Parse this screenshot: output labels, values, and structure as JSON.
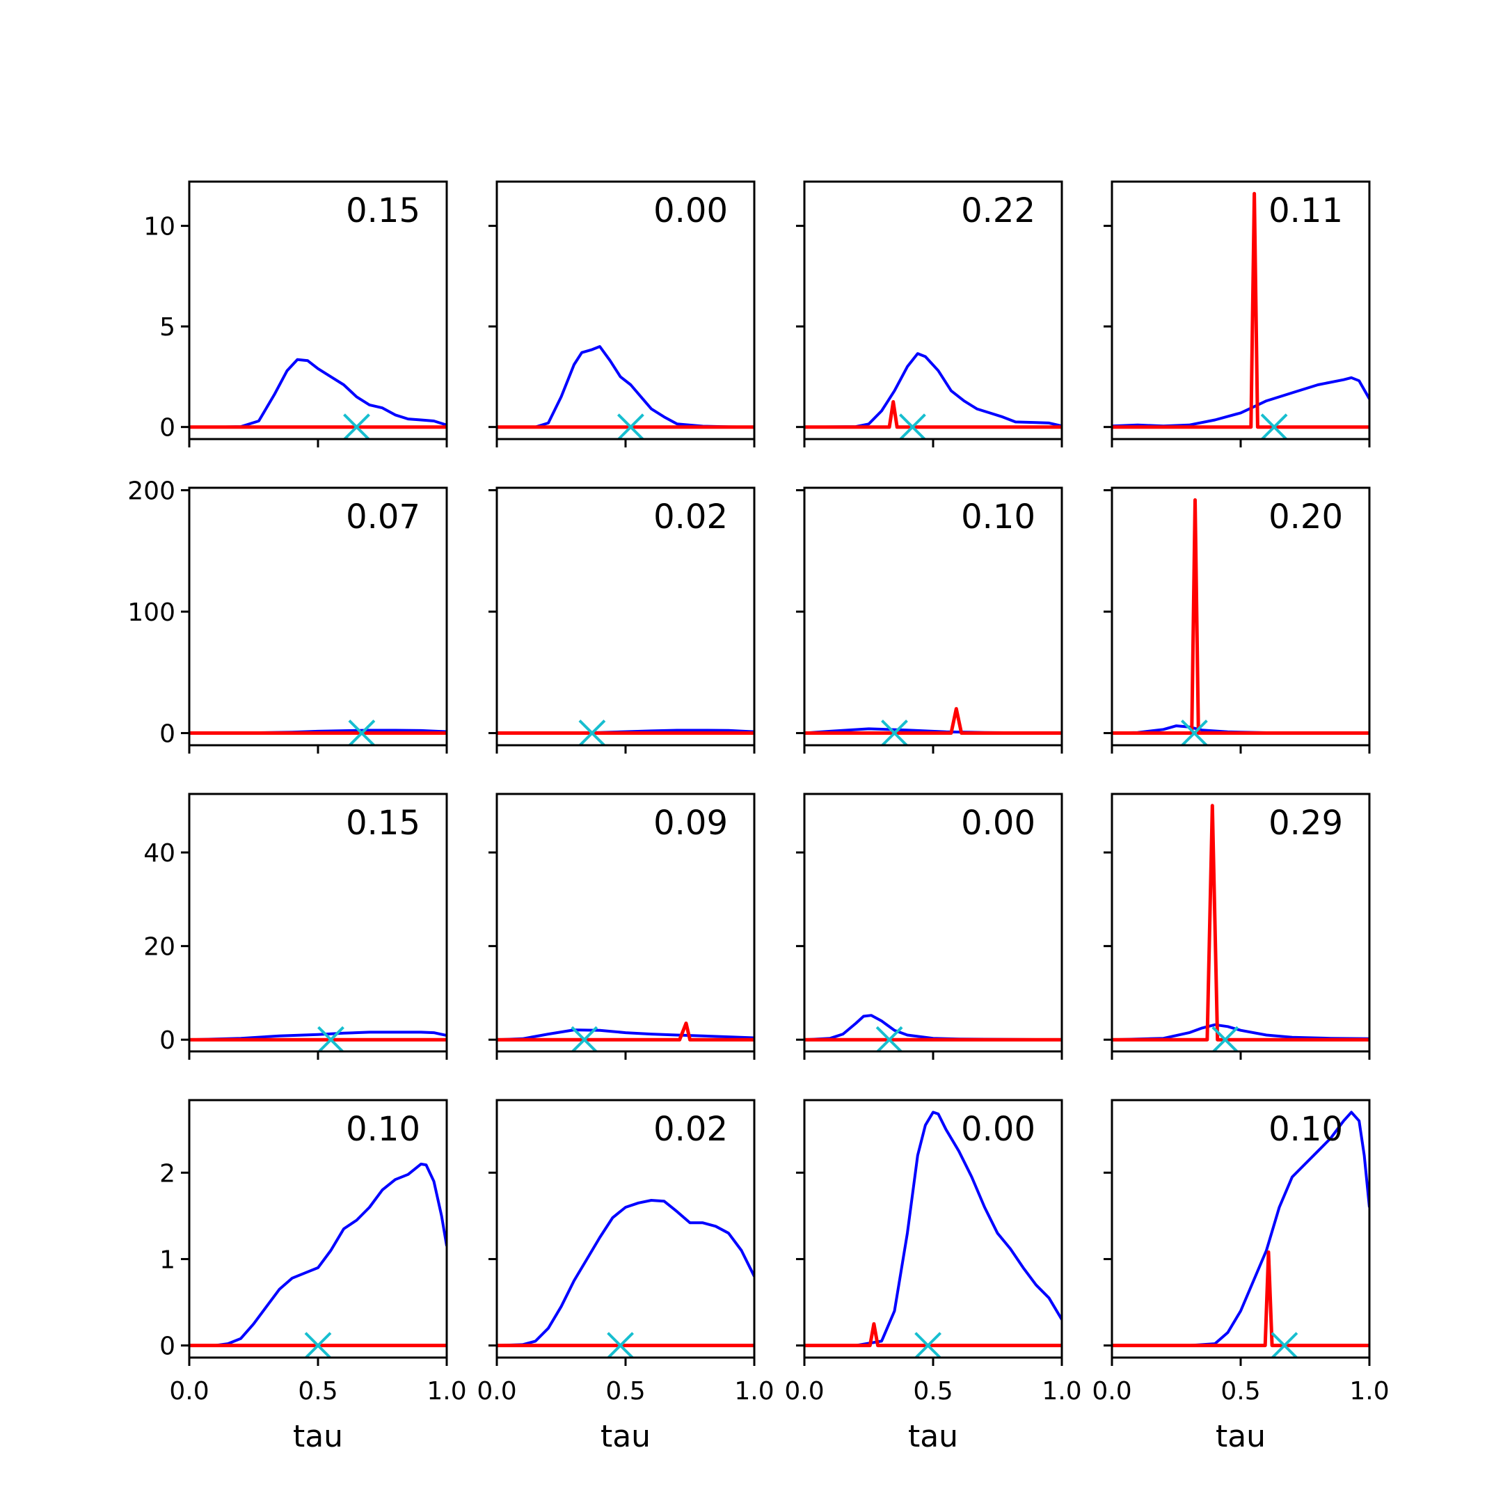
{
  "colors": {
    "posterior": "#0000ff",
    "point_mass": "#ff0000",
    "marker": "#17becf",
    "frame": "#000000",
    "background": "#ffffff"
  },
  "chart_data": {
    "type": "line",
    "layout": "4x4 small multiples",
    "x_range": [
      0,
      1
    ],
    "x_ticks": [
      0.0,
      0.5,
      1.0
    ],
    "x_tick_labels": [
      "0.0",
      "0.5",
      "1.0"
    ],
    "xlabel": "tau",
    "rows": [
      {
        "ylim": [
          -0.6,
          12.2
        ],
        "y_ticks": [
          0,
          5,
          10
        ],
        "y_tick_labels": [
          "0",
          "5",
          "10"
        ]
      },
      {
        "ylim": [
          -10,
          202
        ],
        "y_ticks": [
          0,
          100,
          200
        ],
        "y_tick_labels": [
          "0",
          "100",
          "200"
        ]
      },
      {
        "ylim": [
          -2.5,
          52.5
        ],
        "y_ticks": [
          0,
          20,
          40
        ],
        "y_tick_labels": [
          "0",
          "20",
          "40"
        ]
      },
      {
        "ylim": [
          -0.14,
          2.84
        ],
        "y_ticks": [
          0,
          1,
          2
        ],
        "y_tick_labels": [
          "0",
          "1",
          "2"
        ]
      }
    ],
    "panels": [
      {
        "annotation": "0.15",
        "marker_x": 0.65,
        "posterior": [
          [
            0,
            0
          ],
          [
            0.1,
            0
          ],
          [
            0.2,
            0.02
          ],
          [
            0.27,
            0.3
          ],
          [
            0.33,
            1.6
          ],
          [
            0.38,
            2.8
          ],
          [
            0.42,
            3.35
          ],
          [
            0.46,
            3.3
          ],
          [
            0.5,
            2.9
          ],
          [
            0.55,
            2.5
          ],
          [
            0.6,
            2.1
          ],
          [
            0.65,
            1.5
          ],
          [
            0.7,
            1.1
          ],
          [
            0.75,
            0.95
          ],
          [
            0.8,
            0.6
          ],
          [
            0.85,
            0.4
          ],
          [
            0.9,
            0.35
          ],
          [
            0.95,
            0.3
          ],
          [
            1.0,
            0.1
          ]
        ],
        "point_mass": [
          [
            0,
            0
          ],
          [
            1,
            0
          ]
        ]
      },
      {
        "annotation": "0.00",
        "marker_x": 0.52,
        "posterior": [
          [
            0,
            0
          ],
          [
            0.15,
            0
          ],
          [
            0.2,
            0.2
          ],
          [
            0.25,
            1.5
          ],
          [
            0.3,
            3.1
          ],
          [
            0.33,
            3.7
          ],
          [
            0.37,
            3.85
          ],
          [
            0.4,
            4.0
          ],
          [
            0.44,
            3.3
          ],
          [
            0.48,
            2.5
          ],
          [
            0.52,
            2.1
          ],
          [
            0.56,
            1.5
          ],
          [
            0.6,
            0.9
          ],
          [
            0.65,
            0.5
          ],
          [
            0.7,
            0.15
          ],
          [
            0.8,
            0.04
          ],
          [
            0.9,
            0.01
          ],
          [
            1.0,
            0
          ]
        ],
        "point_mass": [
          [
            0,
            0
          ],
          [
            1,
            0
          ]
        ]
      },
      {
        "annotation": "0.22",
        "marker_x": 0.42,
        "posterior": [
          [
            0,
            0
          ],
          [
            0.2,
            0.02
          ],
          [
            0.25,
            0.15
          ],
          [
            0.3,
            0.8
          ],
          [
            0.35,
            1.8
          ],
          [
            0.4,
            3.0
          ],
          [
            0.44,
            3.65
          ],
          [
            0.47,
            3.5
          ],
          [
            0.52,
            2.8
          ],
          [
            0.57,
            1.8
          ],
          [
            0.62,
            1.3
          ],
          [
            0.67,
            0.9
          ],
          [
            0.72,
            0.7
          ],
          [
            0.77,
            0.5
          ],
          [
            0.82,
            0.25
          ],
          [
            0.9,
            0.22
          ],
          [
            0.95,
            0.2
          ],
          [
            1.0,
            0.05
          ]
        ],
        "point_mass": [
          [
            0,
            0
          ],
          [
            0.33,
            0
          ],
          [
            0.345,
            1.25
          ],
          [
            0.36,
            0
          ],
          [
            1,
            0
          ]
        ]
      },
      {
        "annotation": "0.11",
        "marker_x": 0.63,
        "posterior": [
          [
            0,
            0.05
          ],
          [
            0.1,
            0.1
          ],
          [
            0.2,
            0.05
          ],
          [
            0.3,
            0.1
          ],
          [
            0.4,
            0.35
          ],
          [
            0.5,
            0.7
          ],
          [
            0.55,
            1.0
          ],
          [
            0.6,
            1.3
          ],
          [
            0.7,
            1.7
          ],
          [
            0.8,
            2.1
          ],
          [
            0.9,
            2.35
          ],
          [
            0.93,
            2.45
          ],
          [
            0.96,
            2.3
          ],
          [
            1.0,
            1.4
          ]
        ],
        "point_mass": [
          [
            0,
            0
          ],
          [
            0.54,
            0
          ],
          [
            0.553,
            11.6
          ],
          [
            0.566,
            0
          ],
          [
            1,
            0
          ]
        ]
      },
      {
        "annotation": "0.07",
        "marker_x": 0.67,
        "posterior": [
          [
            0,
            0
          ],
          [
            0.2,
            0.1
          ],
          [
            0.4,
            0.8
          ],
          [
            0.5,
            1.5
          ],
          [
            0.6,
            2.0
          ],
          [
            0.7,
            2.3
          ],
          [
            0.8,
            2.3
          ],
          [
            0.9,
            2.1
          ],
          [
            1.0,
            1.2
          ]
        ],
        "point_mass": [
          [
            0,
            0
          ],
          [
            1,
            0
          ]
        ]
      },
      {
        "annotation": "0.02",
        "marker_x": 0.37,
        "posterior": [
          [
            0,
            0
          ],
          [
            0.2,
            0.1
          ],
          [
            0.4,
            0.5
          ],
          [
            0.6,
            1.8
          ],
          [
            0.7,
            2.3
          ],
          [
            0.8,
            2.3
          ],
          [
            0.9,
            2.2
          ],
          [
            1.0,
            1.1
          ]
        ],
        "point_mass": [
          [
            0,
            0
          ],
          [
            1,
            0
          ]
        ]
      },
      {
        "annotation": "0.10",
        "marker_x": 0.35,
        "posterior": [
          [
            0,
            0
          ],
          [
            0.1,
            1.5
          ],
          [
            0.25,
            3.5
          ],
          [
            0.4,
            2.5
          ],
          [
            0.55,
            1.0
          ],
          [
            0.7,
            0.5
          ],
          [
            0.85,
            0.2
          ],
          [
            1.0,
            0
          ]
        ],
        "point_mass": [
          [
            0,
            0
          ],
          [
            0.57,
            0
          ],
          [
            0.59,
            20
          ],
          [
            0.61,
            0
          ],
          [
            1,
            0
          ]
        ]
      },
      {
        "annotation": "0.20",
        "marker_x": 0.32,
        "posterior": [
          [
            0,
            0
          ],
          [
            0.1,
            0.5
          ],
          [
            0.2,
            3
          ],
          [
            0.25,
            6
          ],
          [
            0.3,
            5
          ],
          [
            0.35,
            2.5
          ],
          [
            0.45,
            1
          ],
          [
            0.6,
            0.3
          ],
          [
            0.8,
            0.1
          ],
          [
            1.0,
            0
          ]
        ],
        "point_mass": [
          [
            0,
            0
          ],
          [
            0.31,
            0
          ],
          [
            0.323,
            192
          ],
          [
            0.336,
            0
          ],
          [
            1,
            0
          ]
        ]
      },
      {
        "annotation": "0.15",
        "marker_x": 0.55,
        "posterior": [
          [
            0,
            0
          ],
          [
            0.2,
            0.3
          ],
          [
            0.35,
            0.8
          ],
          [
            0.5,
            1.1
          ],
          [
            0.6,
            1.4
          ],
          [
            0.7,
            1.6
          ],
          [
            0.8,
            1.6
          ],
          [
            0.9,
            1.6
          ],
          [
            0.95,
            1.5
          ],
          [
            1.0,
            0.9
          ]
        ],
        "point_mass": [
          [
            0,
            0
          ],
          [
            1,
            0
          ]
        ]
      },
      {
        "annotation": "0.09",
        "marker_x": 0.34,
        "posterior": [
          [
            0,
            0
          ],
          [
            0.1,
            0.2
          ],
          [
            0.2,
            1.2
          ],
          [
            0.3,
            2.1
          ],
          [
            0.4,
            2.0
          ],
          [
            0.5,
            1.5
          ],
          [
            0.6,
            1.2
          ],
          [
            0.7,
            1.0
          ],
          [
            0.8,
            0.8
          ],
          [
            0.9,
            0.6
          ],
          [
            1.0,
            0.4
          ]
        ],
        "point_mass": [
          [
            0,
            0
          ],
          [
            0.71,
            0
          ],
          [
            0.735,
            3.5
          ],
          [
            0.75,
            0
          ],
          [
            1,
            0
          ]
        ]
      },
      {
        "annotation": "0.00",
        "marker_x": 0.33,
        "posterior": [
          [
            0,
            0
          ],
          [
            0.1,
            0.3
          ],
          [
            0.15,
            1.2
          ],
          [
            0.2,
            3.5
          ],
          [
            0.23,
            5.0
          ],
          [
            0.26,
            5.2
          ],
          [
            0.3,
            4.0
          ],
          [
            0.35,
            2.0
          ],
          [
            0.4,
            1.0
          ],
          [
            0.5,
            0.3
          ],
          [
            0.6,
            0.15
          ],
          [
            0.8,
            0.05
          ],
          [
            1.0,
            0
          ]
        ],
        "point_mass": [
          [
            0,
            0
          ],
          [
            1,
            0
          ]
        ]
      },
      {
        "annotation": "0.29",
        "marker_x": 0.44,
        "posterior": [
          [
            0,
            0
          ],
          [
            0.2,
            0.3
          ],
          [
            0.3,
            1.5
          ],
          [
            0.35,
            2.5
          ],
          [
            0.4,
            3.2
          ],
          [
            0.45,
            2.8
          ],
          [
            0.5,
            2.0
          ],
          [
            0.6,
            1.0
          ],
          [
            0.7,
            0.5
          ],
          [
            0.85,
            0.3
          ],
          [
            1.0,
            0.2
          ]
        ],
        "point_mass": [
          [
            0,
            0
          ],
          [
            0.37,
            0
          ],
          [
            0.39,
            50
          ],
          [
            0.41,
            0
          ],
          [
            1,
            0
          ]
        ]
      },
      {
        "annotation": "0.10",
        "marker_x": 0.5,
        "posterior": [
          [
            0,
            0
          ],
          [
            0.1,
            0
          ],
          [
            0.15,
            0.02
          ],
          [
            0.2,
            0.08
          ],
          [
            0.25,
            0.25
          ],
          [
            0.3,
            0.45
          ],
          [
            0.35,
            0.65
          ],
          [
            0.4,
            0.78
          ],
          [
            0.45,
            0.84
          ],
          [
            0.5,
            0.9
          ],
          [
            0.55,
            1.1
          ],
          [
            0.6,
            1.35
          ],
          [
            0.65,
            1.45
          ],
          [
            0.7,
            1.6
          ],
          [
            0.75,
            1.8
          ],
          [
            0.8,
            1.92
          ],
          [
            0.85,
            1.98
          ],
          [
            0.9,
            2.1
          ],
          [
            0.92,
            2.09
          ],
          [
            0.95,
            1.9
          ],
          [
            0.98,
            1.5
          ],
          [
            1.0,
            1.15
          ]
        ],
        "point_mass": [
          [
            0,
            0
          ],
          [
            1,
            0
          ]
        ]
      },
      {
        "annotation": "0.02",
        "marker_x": 0.48,
        "posterior": [
          [
            0,
            0
          ],
          [
            0.1,
            0.01
          ],
          [
            0.15,
            0.05
          ],
          [
            0.2,
            0.2
          ],
          [
            0.25,
            0.45
          ],
          [
            0.3,
            0.75
          ],
          [
            0.35,
            1.0
          ],
          [
            0.4,
            1.25
          ],
          [
            0.45,
            1.48
          ],
          [
            0.5,
            1.6
          ],
          [
            0.55,
            1.65
          ],
          [
            0.6,
            1.68
          ],
          [
            0.65,
            1.67
          ],
          [
            0.7,
            1.55
          ],
          [
            0.75,
            1.42
          ],
          [
            0.8,
            1.42
          ],
          [
            0.85,
            1.38
          ],
          [
            0.9,
            1.3
          ],
          [
            0.95,
            1.1
          ],
          [
            1.0,
            0.8
          ]
        ],
        "point_mass": [
          [
            0,
            0
          ],
          [
            1,
            0
          ]
        ]
      },
      {
        "annotation": "0.00",
        "marker_x": 0.48,
        "posterior": [
          [
            0,
            0
          ],
          [
            0.2,
            0
          ],
          [
            0.3,
            0.05
          ],
          [
            0.35,
            0.4
          ],
          [
            0.4,
            1.3
          ],
          [
            0.44,
            2.2
          ],
          [
            0.47,
            2.55
          ],
          [
            0.5,
            2.7
          ],
          [
            0.52,
            2.68
          ],
          [
            0.55,
            2.5
          ],
          [
            0.6,
            2.25
          ],
          [
            0.65,
            1.95
          ],
          [
            0.7,
            1.6
          ],
          [
            0.75,
            1.3
          ],
          [
            0.8,
            1.12
          ],
          [
            0.85,
            0.9
          ],
          [
            0.9,
            0.7
          ],
          [
            0.95,
            0.55
          ],
          [
            1.0,
            0.3
          ]
        ],
        "point_mass": [
          [
            0,
            0
          ],
          [
            0.255,
            0
          ],
          [
            0.27,
            0.25
          ],
          [
            0.285,
            0
          ],
          [
            1,
            0
          ]
        ]
      },
      {
        "annotation": "0.10",
        "marker_x": 0.67,
        "posterior": [
          [
            0,
            0
          ],
          [
            0.3,
            0
          ],
          [
            0.4,
            0.02
          ],
          [
            0.45,
            0.15
          ],
          [
            0.5,
            0.4
          ],
          [
            0.55,
            0.75
          ],
          [
            0.6,
            1.1
          ],
          [
            0.65,
            1.6
          ],
          [
            0.7,
            1.95
          ],
          [
            0.75,
            2.1
          ],
          [
            0.8,
            2.25
          ],
          [
            0.85,
            2.4
          ],
          [
            0.9,
            2.6
          ],
          [
            0.93,
            2.7
          ],
          [
            0.96,
            2.6
          ],
          [
            0.98,
            2.2
          ],
          [
            1.0,
            1.6
          ]
        ],
        "point_mass": [
          [
            0,
            0
          ],
          [
            0.595,
            0
          ],
          [
            0.608,
            1.08
          ],
          [
            0.622,
            0
          ],
          [
            1,
            0
          ]
        ]
      }
    ]
  }
}
